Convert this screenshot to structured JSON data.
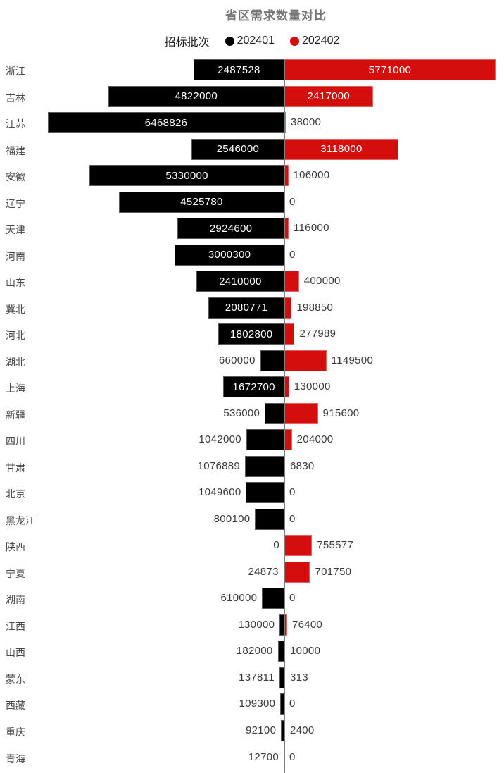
{
  "title": "省区需求数量对比",
  "legend": {
    "title": "招标批次",
    "series": [
      {
        "label": "202401",
        "color": "#000000"
      },
      {
        "label": "202402",
        "color": "#d40d0d"
      }
    ]
  },
  "chart_data": {
    "type": "bar",
    "variant": "diverging-horizontal-tornado",
    "title": "省区需求数量对比",
    "legend_title": "招标批次",
    "legend_position": "top",
    "grid": false,
    "axis": {
      "center": 0,
      "max_abs_value": 6468826
    },
    "categories": [
      "浙江",
      "吉林",
      "江苏",
      "福建",
      "安徽",
      "辽宁",
      "天津",
      "河南",
      "山东",
      "冀北",
      "河北",
      "湖北",
      "上海",
      "新疆",
      "四川",
      "甘肃",
      "北京",
      "黑龙江",
      "陕西",
      "宁夏",
      "湖南",
      "江西",
      "山西",
      "蒙东",
      "西藏",
      "重庆",
      "青海"
    ],
    "series": [
      {
        "name": "202401",
        "color": "#000000",
        "direction": "left",
        "values": [
          2487528,
          4822000,
          6468826,
          2546000,
          5330000,
          4525780,
          2924600,
          3000300,
          2410000,
          2080771,
          1802800,
          660000,
          1672700,
          536000,
          1042000,
          1076889,
          1049600,
          800100,
          0,
          24873,
          610000,
          130000,
          182000,
          137811,
          109300,
          92100,
          12700
        ]
      },
      {
        "name": "202402",
        "color": "#d40d0d",
        "direction": "right",
        "values": [
          5771000,
          2417000,
          38000,
          3118000,
          106000,
          0,
          116000,
          0,
          400000,
          198850,
          277989,
          1149500,
          130000,
          915600,
          204000,
          6830,
          0,
          0,
          755577,
          701750,
          0,
          76400,
          10000,
          313,
          0,
          2400,
          0
        ]
      }
    ]
  },
  "colors": {
    "title_text": "#767676",
    "category_text": "#4a4a4a",
    "value_text_outside": "#3a3a3a",
    "value_text_inside": "#ffffff",
    "axis_line": "#7f7f7f",
    "background": "#ffffff"
  }
}
